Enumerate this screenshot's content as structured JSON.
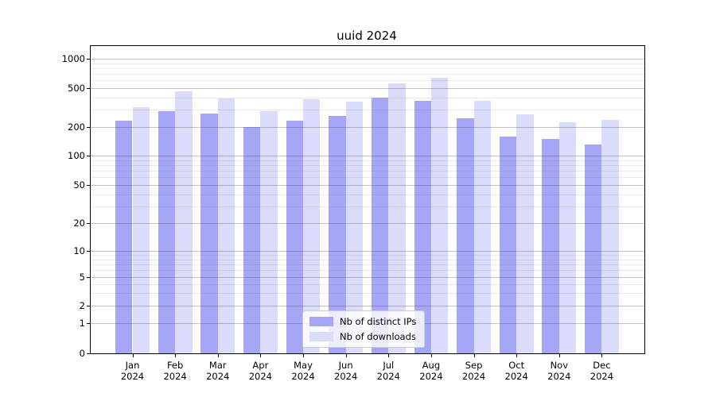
{
  "title": "uuid 2024",
  "chart_data": {
    "type": "bar",
    "title": "uuid 2024",
    "categories": [
      "Jan 2024",
      "Feb 2024",
      "Mar 2024",
      "Apr 2024",
      "May 2024",
      "Jun 2024",
      "Jul 2024",
      "Aug 2024",
      "Sep 2024",
      "Oct 2024",
      "Nov 2024",
      "Dec 2024"
    ],
    "series": [
      {
        "name": "Nb of distinct IPs",
        "color": "#a6a6f6",
        "values": [
          230,
          290,
          275,
          200,
          230,
          260,
          400,
          370,
          245,
          160,
          150,
          130
        ]
      },
      {
        "name": "Nb of downloads",
        "color": "#dbdbfb",
        "values": [
          320,
          465,
          390,
          290,
          380,
          365,
          560,
          640,
          370,
          270,
          225,
          235
        ]
      }
    ],
    "xlabel": "",
    "ylabel": "",
    "yscale": "symlog",
    "yticks": [
      1000,
      500,
      200,
      100,
      50,
      20,
      10,
      5,
      2,
      1,
      0
    ],
    "ylim": [
      0,
      1380
    ],
    "grid": true,
    "legend_position": "bottom-center"
  },
  "legend": {
    "items": [
      {
        "label": "Nb of distinct IPs"
      },
      {
        "label": "Nb of downloads"
      }
    ]
  }
}
